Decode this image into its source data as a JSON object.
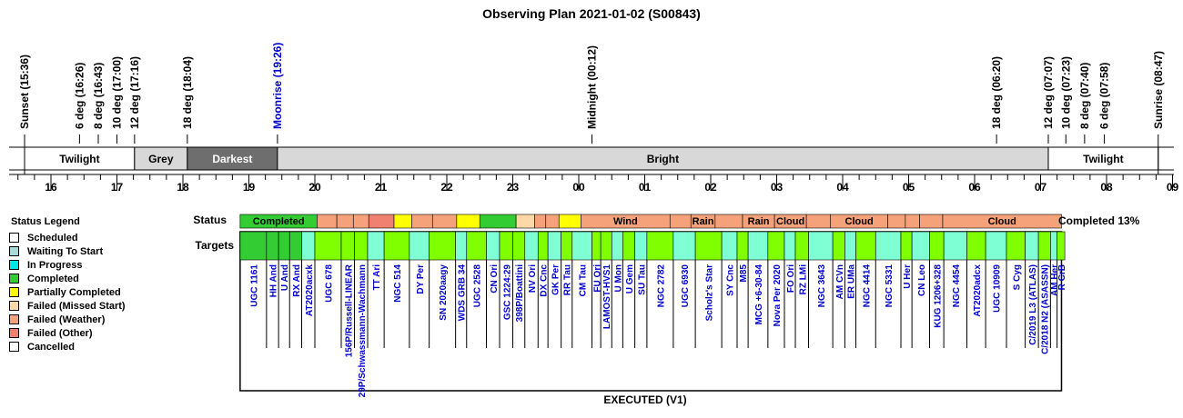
{
  "title": "Observing Plan 2021-01-02 (S00843)",
  "footer": "EXECUTED (V1)",
  "completion": "Completed 13%",
  "row_labels": {
    "status": "Status",
    "targets": "Targets"
  },
  "legend": {
    "title": "Status Legend",
    "items": [
      {
        "label": "Scheduled",
        "color": "#ffffff"
      },
      {
        "label": "Waiting To Start",
        "color": "#a8d8d8"
      },
      {
        "label": "In Progress",
        "color": "#00e5e5"
      },
      {
        "label": "Completed",
        "color": "#33cc33"
      },
      {
        "label": "Partially Completed",
        "color": "#ffff00"
      },
      {
        "label": "Failed (Missed Start)",
        "color": "#ffd8a8"
      },
      {
        "label": "Failed (Weather)",
        "color": "#f5a27a"
      },
      {
        "label": "Failed (Other)",
        "color": "#f08070"
      },
      {
        "label": "Cancelled",
        "color": "#ffffff"
      }
    ]
  },
  "chart_data": {
    "type": "timeline",
    "time_axis": {
      "tick_labels": [
        "16",
        "17",
        "18",
        "19",
        "20",
        "21",
        "22",
        "23",
        "00",
        "01",
        "02",
        "03",
        "04",
        "05",
        "06",
        "07",
        "08",
        "09"
      ]
    },
    "events": [
      {
        "label": "Sunset (15:36)",
        "time": 15.6,
        "color": "#000000"
      },
      {
        "label": "6 deg (16:26)",
        "time": 16.433,
        "color": "#000000"
      },
      {
        "label": "8 deg (16:43)",
        "time": 16.717,
        "color": "#000000"
      },
      {
        "label": "10 deg (17:00)",
        "time": 17.0,
        "color": "#000000"
      },
      {
        "label": "12 deg (17:16)",
        "time": 17.267,
        "color": "#000000"
      },
      {
        "label": "18 deg (18:04)",
        "time": 18.067,
        "color": "#000000"
      },
      {
        "label": "Moonrise (19:26)",
        "time": 19.433,
        "color": "#0000cc"
      },
      {
        "label": "Midnight (00:12)",
        "time": 24.2,
        "color": "#000000"
      },
      {
        "label": "18 deg (06:20)",
        "time": 30.333,
        "color": "#000000"
      },
      {
        "label": "12 deg (07:07)",
        "time": 31.117,
        "color": "#000000"
      },
      {
        "label": "10 deg (07:23)",
        "time": 31.383,
        "color": "#000000"
      },
      {
        "label": "8 deg (07:40)",
        "time": 31.667,
        "color": "#000000"
      },
      {
        "label": "6 deg (07:58)",
        "time": 31.967,
        "color": "#000000"
      },
      {
        "label": "Sunrise (08:47)",
        "time": 32.783,
        "color": "#000000"
      }
    ],
    "sky_bands": [
      {
        "label": "Twilight",
        "start": 15.6,
        "end": 17.267,
        "color": "#ffffff",
        "text_color": "#000000"
      },
      {
        "label": "Grey",
        "start": 17.267,
        "end": 18.067,
        "color": "#d8d8d8",
        "text_color": "#000000"
      },
      {
        "label": "Darkest",
        "start": 18.067,
        "end": 19.433,
        "color": "#6e6e6e",
        "text_color": "#ffffff"
      },
      {
        "label": "Bright",
        "start": 19.433,
        "end": 31.117,
        "color": "#d8d8d8",
        "text_color": "#000000"
      },
      {
        "label": "Twilight",
        "start": 31.117,
        "end": 32.783,
        "color": "#ffffff",
        "text_color": "#000000"
      }
    ],
    "status_blocks": [
      {
        "start": 18.867,
        "end": 20.033,
        "color": "#33cc33",
        "label": "Completed"
      },
      {
        "start": 20.033,
        "end": 20.333,
        "color": "#f5a27a",
        "label": ""
      },
      {
        "start": 20.333,
        "end": 20.583,
        "color": "#f5a27a",
        "label": ""
      },
      {
        "start": 20.583,
        "end": 20.817,
        "color": "#f5a27a",
        "label": ""
      },
      {
        "start": 20.817,
        "end": 21.2,
        "color": "#f08070",
        "label": ""
      },
      {
        "start": 21.2,
        "end": 21.467,
        "color": "#ffff00",
        "label": ""
      },
      {
        "start": 21.467,
        "end": 21.783,
        "color": "#f5a27a",
        "label": ""
      },
      {
        "start": 21.783,
        "end": 22.15,
        "color": "#f5a27a",
        "label": ""
      },
      {
        "start": 22.15,
        "end": 22.5,
        "color": "#ffff00",
        "label": ""
      },
      {
        "start": 22.5,
        "end": 23.05,
        "color": "#33cc33",
        "label": ""
      },
      {
        "start": 23.05,
        "end": 23.333,
        "color": "#ffd8a8",
        "label": ""
      },
      {
        "start": 23.333,
        "end": 23.5,
        "color": "#f5a27a",
        "label": ""
      },
      {
        "start": 23.5,
        "end": 23.7,
        "color": "#f5a27a",
        "label": ""
      },
      {
        "start": 23.7,
        "end": 24.033,
        "color": "#ffff00",
        "label": ""
      },
      {
        "start": 24.033,
        "end": 25.383,
        "color": "#f5a27a",
        "label": "Wind"
      },
      {
        "start": 25.383,
        "end": 25.7,
        "color": "#f5a27a",
        "label": ""
      },
      {
        "start": 25.7,
        "end": 26.067,
        "color": "#f5a27a",
        "label": "Rain"
      },
      {
        "start": 26.067,
        "end": 26.483,
        "color": "#f5a27a",
        "label": ""
      },
      {
        "start": 26.483,
        "end": 26.967,
        "color": "#f5a27a",
        "label": "Rain"
      },
      {
        "start": 26.967,
        "end": 27.45,
        "color": "#f5a27a",
        "label": "Cloud"
      },
      {
        "start": 27.45,
        "end": 27.817,
        "color": "#f5a27a",
        "label": ""
      },
      {
        "start": 27.817,
        "end": 28.683,
        "color": "#f5a27a",
        "label": "Cloud"
      },
      {
        "start": 28.683,
        "end": 28.95,
        "color": "#f5a27a",
        "label": ""
      },
      {
        "start": 28.95,
        "end": 29.167,
        "color": "#f5a27a",
        "label": ""
      },
      {
        "start": 29.167,
        "end": 29.517,
        "color": "#f5a27a",
        "label": ""
      },
      {
        "start": 29.517,
        "end": 31.317,
        "color": "#f5a27a",
        "label": "Cloud"
      }
    ],
    "targets": [
      {
        "name": "UGC 1161",
        "start": 18.867,
        "end": 19.267,
        "color": "#33cc33"
      },
      {
        "name": "HH And",
        "start": 19.267,
        "end": 19.45,
        "color": "#33cc33"
      },
      {
        "name": "U And",
        "start": 19.45,
        "end": 19.617,
        "color": "#33cc33"
      },
      {
        "name": "RX And",
        "start": 19.617,
        "end": 19.8,
        "color": "#33cc33"
      },
      {
        "name": "AT2020acxk",
        "start": 19.8,
        "end": 20.0,
        "color": "#7fffd4"
      },
      {
        "name": "UGC 678",
        "start": 20.0,
        "end": 20.4,
        "color": "#7fff00"
      },
      {
        "name": "156P/Russell-LINEAR",
        "start": 20.4,
        "end": 20.6,
        "color": "#7fff00"
      },
      {
        "name": "29P/Schwassmann-Wachmann",
        "start": 20.6,
        "end": 20.8,
        "color": "#7fff00"
      },
      {
        "name": "TT Ari",
        "start": 20.8,
        "end": 21.05,
        "color": "#7fffd4"
      },
      {
        "name": "NGC 514",
        "start": 21.05,
        "end": 21.433,
        "color": "#7fff00"
      },
      {
        "name": "DY Per",
        "start": 21.433,
        "end": 21.733,
        "color": "#7fffd4"
      },
      {
        "name": "SN 2020aagy",
        "start": 21.733,
        "end": 22.133,
        "color": "#7fff00"
      },
      {
        "name": "WDS GRB 34",
        "start": 22.133,
        "end": 22.3,
        "color": "#7fffd4"
      },
      {
        "name": "UGC 2528",
        "start": 22.3,
        "end": 22.6,
        "color": "#7fff00"
      },
      {
        "name": "CN Ori",
        "start": 22.6,
        "end": 22.8,
        "color": "#7fffd4"
      },
      {
        "name": "GSC 1224:29",
        "start": 22.8,
        "end": 23.0,
        "color": "#7fff00"
      },
      {
        "name": "398P/Boattini",
        "start": 23.0,
        "end": 23.183,
        "color": "#7fff00"
      },
      {
        "name": "NV Ori",
        "start": 23.183,
        "end": 23.383,
        "color": "#7fffd4"
      },
      {
        "name": "DX Cnc",
        "start": 23.383,
        "end": 23.533,
        "color": "#7fff00"
      },
      {
        "name": "GK Per",
        "start": 23.533,
        "end": 23.733,
        "color": "#7fffd4"
      },
      {
        "name": "RR Tau",
        "start": 23.733,
        "end": 23.9,
        "color": "#7fff00"
      },
      {
        "name": "CM Tau",
        "start": 23.9,
        "end": 24.2,
        "color": "#7fffd4"
      },
      {
        "name": "FU Ori",
        "start": 24.2,
        "end": 24.333,
        "color": "#7fff00"
      },
      {
        "name": "LAMOST-HVS1",
        "start": 24.333,
        "end": 24.5,
        "color": "#7fff00"
      },
      {
        "name": "U Mon",
        "start": 24.5,
        "end": 24.667,
        "color": "#7fffd4"
      },
      {
        "name": "U Gem",
        "start": 24.667,
        "end": 24.85,
        "color": "#7fff00"
      },
      {
        "name": "SU Tau",
        "start": 24.85,
        "end": 25.033,
        "color": "#7fffd4"
      },
      {
        "name": "NGC 2782",
        "start": 25.033,
        "end": 25.433,
        "color": "#7fff00"
      },
      {
        "name": "UGC 6930",
        "start": 25.433,
        "end": 25.767,
        "color": "#7fffd4"
      },
      {
        "name": "Scholz's Star",
        "start": 25.767,
        "end": 26.167,
        "color": "#7fff00"
      },
      {
        "name": "SY Cnc",
        "start": 26.167,
        "end": 26.4,
        "color": "#7fffd4"
      },
      {
        "name": "M85",
        "start": 26.4,
        "end": 26.567,
        "color": "#7fff00"
      },
      {
        "name": "MCG +6-30-84",
        "start": 26.567,
        "end": 26.867,
        "color": "#7fffd4"
      },
      {
        "name": "Nova Per 2020",
        "start": 26.867,
        "end": 27.117,
        "color": "#7fff00"
      },
      {
        "name": "FO Ori",
        "start": 27.117,
        "end": 27.283,
        "color": "#7fffd4"
      },
      {
        "name": "RZ LMi",
        "start": 27.283,
        "end": 27.483,
        "color": "#7fff00"
      },
      {
        "name": "NGC 3643",
        "start": 27.483,
        "end": 27.85,
        "color": "#7fffd4"
      },
      {
        "name": "AM CVn",
        "start": 27.85,
        "end": 28.033,
        "color": "#7fff00"
      },
      {
        "name": "ER UMa",
        "start": 28.033,
        "end": 28.2,
        "color": "#7fffd4"
      },
      {
        "name": "NGC 4414",
        "start": 28.2,
        "end": 28.5,
        "color": "#7fff00"
      },
      {
        "name": "NGC 5331",
        "start": 28.5,
        "end": 28.883,
        "color": "#7fffd4"
      },
      {
        "name": "U Her",
        "start": 28.883,
        "end": 29.05,
        "color": "#7fff00"
      },
      {
        "name": "CN Leo",
        "start": 29.05,
        "end": 29.317,
        "color": "#7fffd4"
      },
      {
        "name": "KUG 1206+328",
        "start": 29.317,
        "end": 29.533,
        "color": "#7fff00"
      },
      {
        "name": "NGC 4454",
        "start": 29.533,
        "end": 29.883,
        "color": "#7fffd4"
      },
      {
        "name": "AT2020adcx",
        "start": 29.883,
        "end": 30.167,
        "color": "#7fff00"
      },
      {
        "name": "UGC 10909",
        "start": 30.167,
        "end": 30.483,
        "color": "#7fffd4"
      },
      {
        "name": "S Cyg",
        "start": 30.483,
        "end": 30.767,
        "color": "#7fff00"
      },
      {
        "name": "C/2019 L3 (ATLAS)",
        "start": 30.767,
        "end": 30.967,
        "color": "#7fffd4"
      },
      {
        "name": "C/2018 N2 (ASASSN)",
        "start": 30.967,
        "end": 31.15,
        "color": "#7fff00"
      },
      {
        "name": "AM Her",
        "start": 31.15,
        "end": 31.25,
        "color": "#7fffd4"
      },
      {
        "name": "R CrB",
        "start": 31.25,
        "end": 31.367,
        "color": "#7fff00"
      }
    ]
  }
}
